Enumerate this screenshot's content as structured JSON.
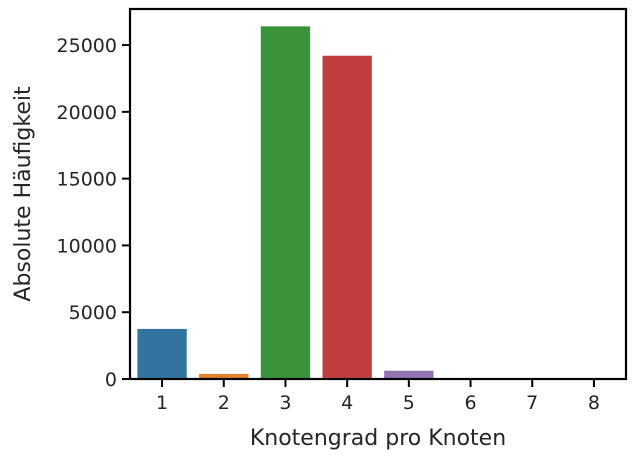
{
  "chart_data": {
    "type": "bar",
    "categories": [
      "1",
      "2",
      "3",
      "4",
      "5",
      "6",
      "7",
      "8"
    ],
    "values": [
      3750,
      380,
      26400,
      24200,
      620,
      70,
      20,
      10
    ],
    "colors": [
      "#3274a1",
      "#e1812c",
      "#3a923a",
      "#c03d3e",
      "#9372b2",
      "#845b53",
      "#d684bd",
      "#7f7f7f"
    ],
    "title": "",
    "xlabel": "Knotengrad pro Knoten",
    "ylabel": "Absolute Häufigkeit",
    "ylim": [
      0,
      27700
    ],
    "yticks": [
      0,
      5000,
      10000,
      15000,
      20000,
      25000
    ],
    "grid": false,
    "legend": "none"
  }
}
